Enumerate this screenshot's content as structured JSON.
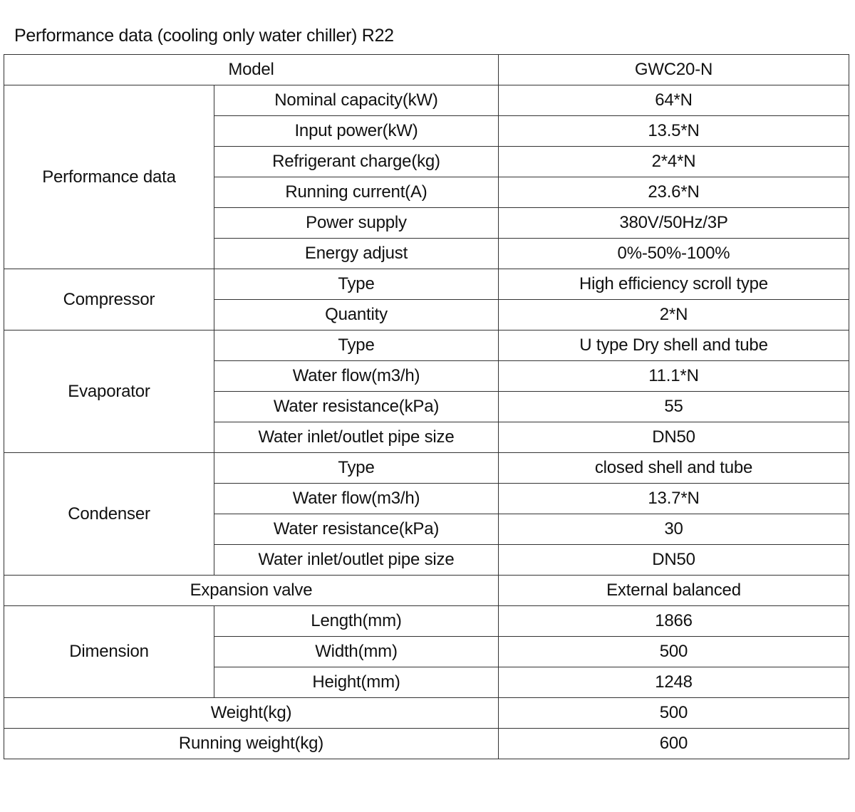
{
  "title": "Performance data (cooling only water chiller) R22",
  "model": {
    "label": "Model",
    "value": "GWC20-N"
  },
  "groups": [
    {
      "name": "Performance data",
      "rows": [
        {
          "label": "Nominal capacity(kW)",
          "value": "64*N"
        },
        {
          "label": "Input power(kW)",
          "value": "13.5*N"
        },
        {
          "label": "Refrigerant charge(kg)",
          "value": "2*4*N"
        },
        {
          "label": "Running current(A)",
          "value": "23.6*N"
        },
        {
          "label": "Power supply",
          "value": "380V/50Hz/3P"
        },
        {
          "label": "Energy adjust",
          "value": "0%-50%-100%"
        }
      ]
    },
    {
      "name": "Compressor",
      "rows": [
        {
          "label": "Type",
          "value": "High efficiency scroll type"
        },
        {
          "label": "Quantity",
          "value": "2*N"
        }
      ]
    },
    {
      "name": "Evaporator",
      "rows": [
        {
          "label": "Type",
          "value": "U type Dry shell and tube"
        },
        {
          "label": "Water flow(m3/h)",
          "value": "11.1*N"
        },
        {
          "label": "Water resistance(kPa)",
          "value": "55"
        },
        {
          "label": "Water inlet/outlet pipe size",
          "value": "DN50"
        }
      ]
    },
    {
      "name": "Condenser",
      "rows": [
        {
          "label": "Type",
          "value": "closed shell and tube"
        },
        {
          "label": "Water flow(m3/h)",
          "value": "13.7*N"
        },
        {
          "label": "Water resistance(kPa)",
          "value": "30"
        },
        {
          "label": "Water inlet/outlet pipe size",
          "value": "DN50"
        }
      ]
    }
  ],
  "expansion_valve": {
    "label": "Expansion valve",
    "value": "External balanced"
  },
  "dimension": {
    "name": "Dimension",
    "rows": [
      {
        "label": "Length(mm)",
        "value": "1866"
      },
      {
        "label": "Width(mm)",
        "value": "500"
      },
      {
        "label": "Height(mm)",
        "value": "1248"
      }
    ]
  },
  "weight": {
    "label": "Weight(kg)",
    "value": "500"
  },
  "running_weight": {
    "label": "Running weight(kg)",
    "value": "600"
  }
}
